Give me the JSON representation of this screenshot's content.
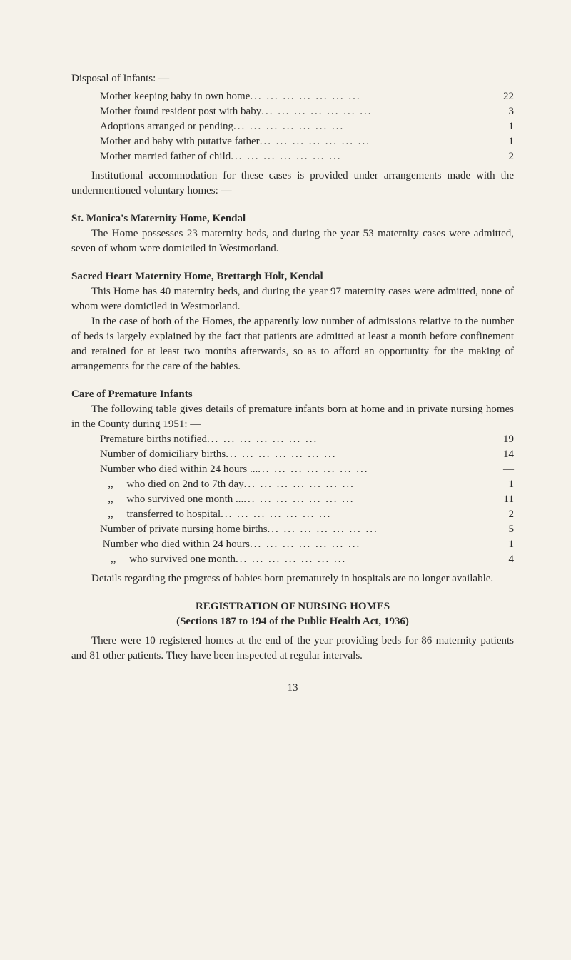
{
  "disposal": {
    "heading": "Disposal of Infants: —",
    "items": [
      {
        "label": "Mother keeping baby in own home",
        "value": "22"
      },
      {
        "label": "Mother found resident post with baby",
        "value": "3"
      },
      {
        "label": "Adoptions arranged or pending",
        "value": "1"
      },
      {
        "label": "Mother and baby with putative father",
        "value": "1"
      },
      {
        "label": "Mother married father of child",
        "value": "2"
      }
    ],
    "para": "Institutional accommodation for these cases is provided under arrangements made with the undermentioned voluntary homes: —"
  },
  "stMonica": {
    "heading": "St. Monica's Maternity Home, Kendal",
    "para": "The Home possesses 23 maternity beds, and during the year 53 maternity cases were admitted, seven of whom were domiciled in Westmorland."
  },
  "sacredHeart": {
    "heading": "Sacred Heart Maternity Home, Brettargh Holt, Kendal",
    "para1": "This Home has 40 maternity beds, and during the year 97 maternity cases were admitted, none of whom were domiciled in Westmorland.",
    "para2": "In the case of both of the Homes, the apparently low number of admissions relative to the number of beds is largely explained by the fact that patients are admitted at least a month before confinement and retained for at least two months afterwards, so as to afford an opportunity for the making of arrangements for the care of the babies."
  },
  "premature": {
    "heading": "Care of Premature Infants",
    "intro": "The following table gives details of premature infants born at home and in private nursing homes in the County during 1951: —",
    "items": [
      {
        "label": "Premature births notified",
        "value": "19"
      },
      {
        "label": "Number of domiciliary births",
        "value": "14"
      },
      {
        "label": "Number who died within 24 hours ...",
        "value": "—"
      },
      {
        "label": "   ,,     who died on 2nd to 7th day",
        "value": "1"
      },
      {
        "label": "   ,,     who survived one month ...",
        "value": "11"
      },
      {
        "label": "   ,,     transferred to hospital",
        "value": "2"
      },
      {
        "label": "Number of private nursing home births",
        "value": "5"
      },
      {
        "label": " Number who died within 24 hours",
        "value": "1"
      },
      {
        "label": "    ,,     who survived one month",
        "value": "4"
      }
    ],
    "closing": "Details regarding the progress of babies born prematurely in hospitals are no longer available."
  },
  "registration": {
    "heading1": "REGISTRATION OF NURSING HOMES",
    "heading2": "(Sections 187 to 194 of the Public Health Act, 1936)",
    "para": "There were 10 registered homes at the end of the year providing beds for 86 maternity patients and 81 other patients. They have been inspected at regular intervals."
  },
  "pageNumber": "13"
}
